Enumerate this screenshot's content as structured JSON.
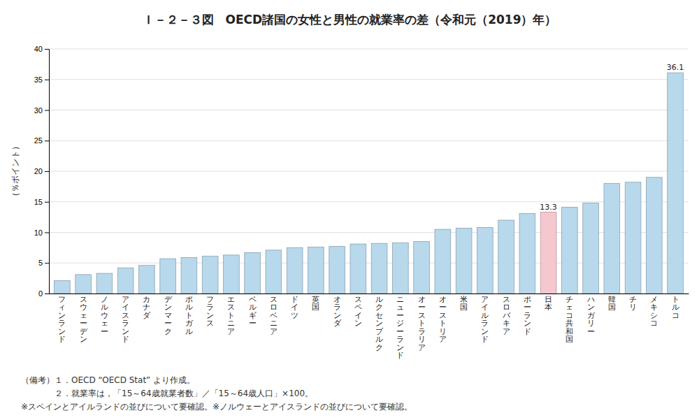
{
  "chart_data": {
    "type": "bar",
    "title": "Ｉ－２－３図　OECD諸国の女性と男性の就業率の差（令和元（2019）年）",
    "ylabel": "（％ポイント）",
    "categories": [
      "フィンランド",
      "スウェーデン",
      "ノルウェー",
      "アイスランド",
      "カナダ",
      "デンマーク",
      "ポルトガル",
      "フランス",
      "エストニア",
      "ベルギー",
      "スロベニア",
      "ドイツ",
      "英国",
      "オランダ",
      "スペイン",
      "ルクセンブルク",
      "ニュージーランド",
      "オーストラリア",
      "オーストリア",
      "米国",
      "アイルランド",
      "スロバキア",
      "ポーランド",
      "日本",
      "チェコ共和国",
      "ハンガリー",
      "韓国",
      "チリ",
      "メキシコ",
      "トルコ"
    ],
    "values": [
      2.1,
      3.1,
      3.3,
      4.2,
      4.6,
      5.7,
      5.9,
      6.1,
      6.3,
      6.7,
      7.1,
      7.5,
      7.6,
      7.7,
      8.1,
      8.2,
      8.3,
      8.5,
      10.5,
      10.7,
      10.8,
      12.0,
      13.1,
      13.3,
      14.1,
      14.8,
      18.0,
      18.2,
      19.0,
      36.1
    ],
    "value_labels": [
      null,
      null,
      null,
      null,
      null,
      null,
      null,
      null,
      null,
      null,
      null,
      null,
      null,
      null,
      null,
      null,
      null,
      null,
      null,
      null,
      null,
      null,
      null,
      "13.3",
      null,
      null,
      null,
      null,
      null,
      "36.1"
    ],
    "colors": [
      "#b8d8ec",
      "#b8d8ec",
      "#b8d8ec",
      "#b8d8ec",
      "#b8d8ec",
      "#b8d8ec",
      "#b8d8ec",
      "#b8d8ec",
      "#b8d8ec",
      "#b8d8ec",
      "#b8d8ec",
      "#b8d8ec",
      "#b8d8ec",
      "#b8d8ec",
      "#b8d8ec",
      "#b8d8ec",
      "#b8d8ec",
      "#b8d8ec",
      "#b8d8ec",
      "#b8d8ec",
      "#b8d8ec",
      "#b8d8ec",
      "#b8d8ec",
      "#f5c8d0",
      "#b8d8ec",
      "#b8d8ec",
      "#b8d8ec",
      "#b8d8ec",
      "#b8d8ec",
      "#b8d8ec"
    ],
    "ylim": [
      0,
      40
    ],
    "yticks": [
      0,
      5,
      10,
      15,
      20,
      25,
      30,
      35,
      40
    ],
    "grid": true,
    "annotations": [
      "（備考）１．OECD “OECD Stat” より作成。",
      "　　　　２．就業率は，「15～64歳就業者数」／「15～64歳人口」×100。",
      "※スペインとアイルランドの並びについて要確認。※ノルウェーとアイスランドの並びについて要確認。"
    ]
  }
}
